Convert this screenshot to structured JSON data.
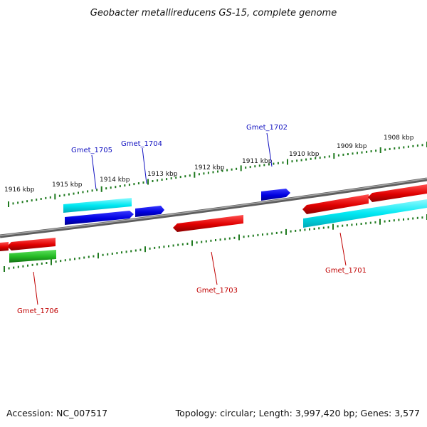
{
  "title": "Geobacter metallireducens GS-15, complete genome",
  "accession_text": "Accession: NC_007517",
  "stats_text": "Topology: circular; Length: 3,997,420 bp; Genes: 3,577",
  "colors": {
    "backbone": "#7a7a7a",
    "tick": "#1f7a1f",
    "forward_label": "#1010c0",
    "reverse_label": "#c00000",
    "forward_cds": "#0000e0",
    "forward_feature": "#00e5f0",
    "reverse_cds": "#e00000",
    "reverse_feature": "#00e5f0",
    "other": "#23b823"
  },
  "scale_labels": [
    "1916 kbp",
    "1915 kbp",
    "1914 kbp",
    "1913 kbp",
    "1912 kbp",
    "1911 kbp",
    "1910 kbp",
    "1909 kbp",
    "1908 kbp"
  ],
  "gene_labels": {
    "Gmet_1702": "Gmet_1702",
    "Gmet_1704": "Gmet_1704",
    "Gmet_1705": "Gmet_1705",
    "Gmet_1701": "Gmet_1701",
    "Gmet_1703": "Gmet_1703",
    "Gmet_1706": "Gmet_1706"
  }
}
